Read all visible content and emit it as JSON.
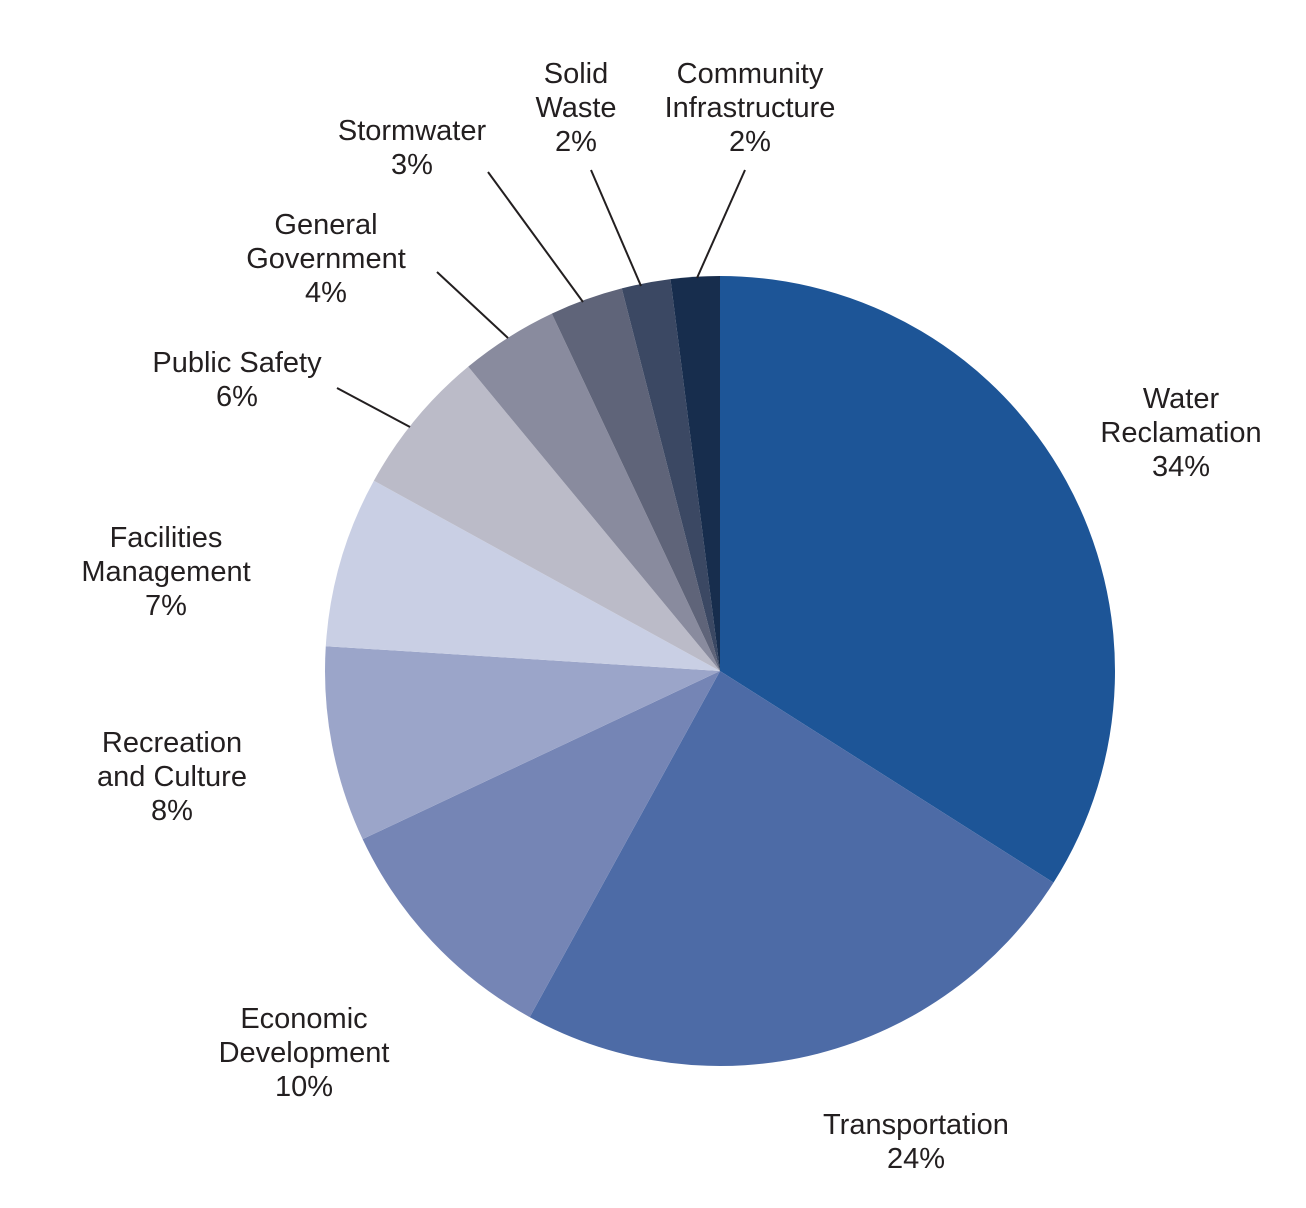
{
  "chart_data": {
    "type": "pie",
    "start": "top",
    "direction": "clockwise",
    "slices": [
      {
        "name": "Water Reclamation",
        "label_lines": [
          "Water",
          "Reclamation"
        ],
        "value": 34,
        "value_label": "34%",
        "color": "#1d5597"
      },
      {
        "name": "Transportation",
        "label_lines": [
          "Transportation"
        ],
        "value": 24,
        "value_label": "24%",
        "color": "#4d6ba6"
      },
      {
        "name": "Economic Development",
        "label_lines": [
          "Economic",
          "Development"
        ],
        "value": 10,
        "value_label": "10%",
        "color": "#7585b5"
      },
      {
        "name": "Recreation and Culture",
        "label_lines": [
          "Recreation",
          "and Culture"
        ],
        "value": 8,
        "value_label": "8%",
        "color": "#9ba5c9"
      },
      {
        "name": "Facilities Management",
        "label_lines": [
          "Facilities",
          "Management"
        ],
        "value": 7,
        "value_label": "7%",
        "color": "#c9cfe4"
      },
      {
        "name": "Public Safety",
        "label_lines": [
          "Public Safety"
        ],
        "value": 6,
        "value_label": "6%",
        "color": "#bbbbc8"
      },
      {
        "name": "General Government",
        "label_lines": [
          "General",
          "Government"
        ],
        "value": 4,
        "value_label": "4%",
        "color": "#898b9e"
      },
      {
        "name": "Stormwater",
        "label_lines": [
          "Stormwater"
        ],
        "value": 3,
        "value_label": "3%",
        "color": "#5f6479"
      },
      {
        "name": "Solid Waste",
        "label_lines": [
          "Solid",
          "Waste"
        ],
        "value": 2,
        "value_label": "2%",
        "color": "#3b4863"
      },
      {
        "name": "Community Infrastructure",
        "label_lines": [
          "Community",
          "Infrastructure"
        ],
        "value": 2,
        "value_label": "2%",
        "color": "#172d4d"
      }
    ]
  }
}
